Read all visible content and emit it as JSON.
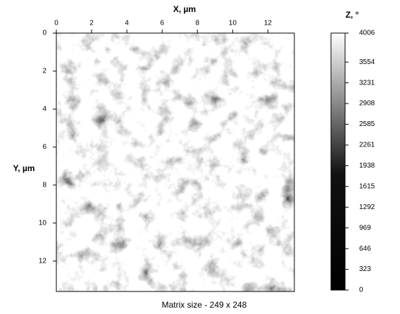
{
  "chart_data": {
    "type": "heatmap",
    "xlabel": "X, µm",
    "ylabel": "Y, µm",
    "colorbar_label": "Z, °",
    "xlim": [
      0,
      13.5
    ],
    "xticks": [
      0,
      2,
      4,
      6,
      8,
      10,
      12
    ],
    "ylim": [
      0,
      13.6
    ],
    "yticks": [
      0,
      2,
      4,
      6,
      8,
      10,
      12
    ],
    "zlim": [
      0,
      4006
    ],
    "zticks": [
      0,
      323,
      646,
      969,
      1292,
      1615,
      1938,
      2261,
      2585,
      2908,
      3231,
      3554,
      4006
    ],
    "footer": "Matrix size - 249 x 248"
  }
}
